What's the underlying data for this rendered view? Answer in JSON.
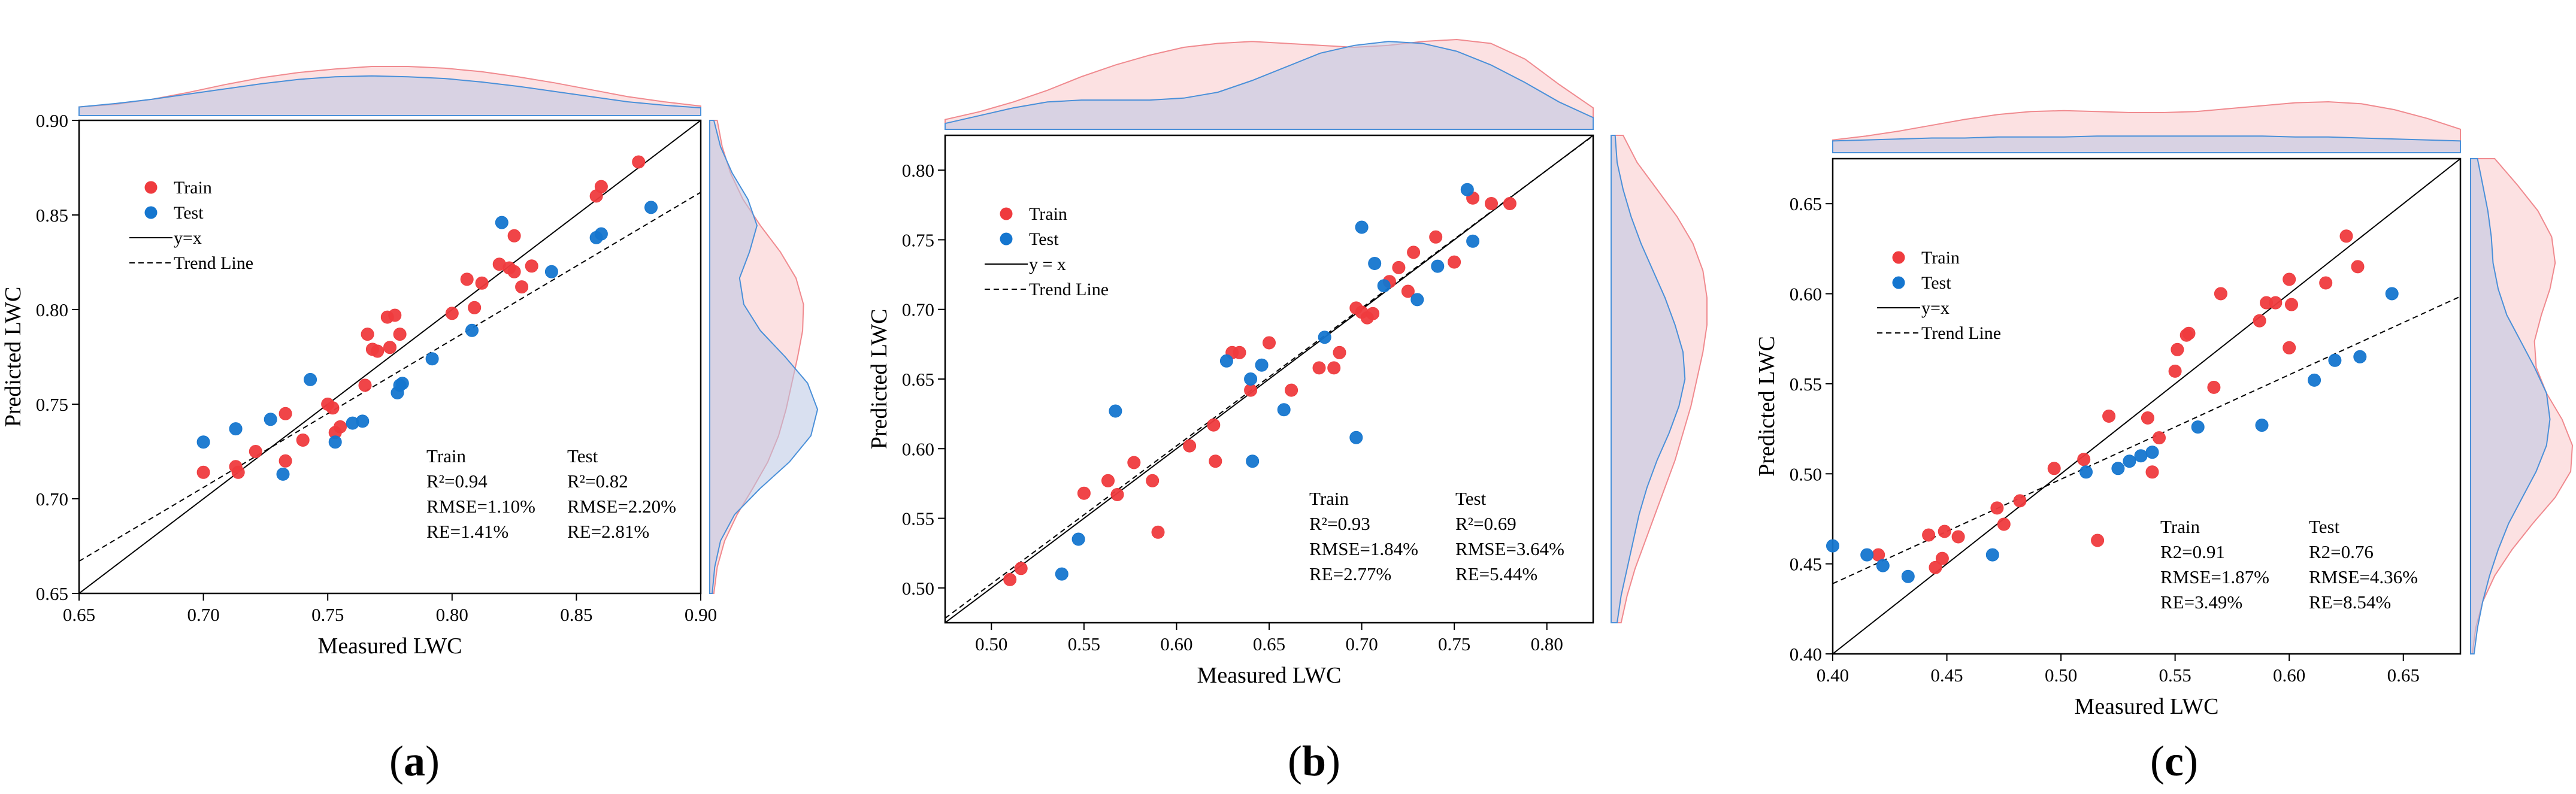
{
  "colors": {
    "train": "#ef3b3e",
    "test": "#1576cf",
    "train_fill": "#f9c9cb",
    "test_fill": "#b9c7e4",
    "test_line": "#4a90d9",
    "train_line": "#f08a8f"
  },
  "chart_data": [
    {
      "type": "scatter",
      "panel": "(a)",
      "panel_letter": "a",
      "xlabel": "Measured LWC",
      "ylabel": "Predicted LWC",
      "xlim": [
        0.65,
        0.9
      ],
      "ylim": [
        0.65,
        0.9
      ],
      "xticks": [
        "0.65",
        "0.70",
        "0.75",
        "0.80",
        "0.85",
        "0.90"
      ],
      "yticks": [
        "0.65",
        "0.70",
        "0.75",
        "0.80",
        "0.85",
        "0.90"
      ],
      "legend": {
        "train": "Train",
        "test": "Test",
        "identity": "y=x",
        "trend": "Trend Line"
      },
      "trend": {
        "slope": 0.78,
        "intercept": 0.16
      },
      "stats_train": [
        "Train",
        "R²=0.94",
        "RMSE=1.10%",
        "RE=1.41%"
      ],
      "stats_test": [
        "Test",
        "R²=0.82",
        "RMSE=2.20%",
        "RE=2.81%"
      ],
      "series": [
        {
          "name": "Train",
          "points": [
            [
              0.7,
              0.714
            ],
            [
              0.713,
              0.717
            ],
            [
              0.714,
              0.714
            ],
            [
              0.721,
              0.725
            ],
            [
              0.733,
              0.745
            ],
            [
              0.74,
              0.731
            ],
            [
              0.733,
              0.72
            ],
            [
              0.75,
              0.75
            ],
            [
              0.752,
              0.748
            ],
            [
              0.753,
              0.735
            ],
            [
              0.755,
              0.738
            ],
            [
              0.765,
              0.76
            ],
            [
              0.766,
              0.787
            ],
            [
              0.768,
              0.779
            ],
            [
              0.77,
              0.778
            ],
            [
              0.775,
              0.78
            ],
            [
              0.774,
              0.796
            ],
            [
              0.777,
              0.797
            ],
            [
              0.779,
              0.787
            ],
            [
              0.8,
              0.798
            ],
            [
              0.806,
              0.816
            ],
            [
              0.809,
              0.801
            ],
            [
              0.812,
              0.814
            ],
            [
              0.819,
              0.824
            ],
            [
              0.823,
              0.822
            ],
            [
              0.825,
              0.82
            ],
            [
              0.825,
              0.839
            ],
            [
              0.828,
              0.812
            ],
            [
              0.832,
              0.823
            ],
            [
              0.858,
              0.86
            ],
            [
              0.86,
              0.865
            ],
            [
              0.875,
              0.878
            ]
          ]
        },
        {
          "name": "Test",
          "points": [
            [
              0.7,
              0.73
            ],
            [
              0.713,
              0.737
            ],
            [
              0.727,
              0.742
            ],
            [
              0.732,
              0.713
            ],
            [
              0.743,
              0.763
            ],
            [
              0.753,
              0.73
            ],
            [
              0.76,
              0.74
            ],
            [
              0.764,
              0.741
            ],
            [
              0.778,
              0.756
            ],
            [
              0.779,
              0.76
            ],
            [
              0.78,
              0.761
            ],
            [
              0.792,
              0.774
            ],
            [
              0.808,
              0.789
            ],
            [
              0.82,
              0.846
            ],
            [
              0.84,
              0.82
            ],
            [
              0.858,
              0.838
            ],
            [
              0.86,
              0.84
            ],
            [
              0.88,
              0.854
            ]
          ]
        }
      ],
      "density_top": {
        "train": [
          1.0,
          1.3,
          1.9,
          2.7,
          3.6,
          4.4,
          5.0,
          5.4,
          5.7,
          5.7,
          5.5,
          5.1,
          4.5,
          3.8,
          3.0,
          2.2,
          1.6,
          1.1
        ],
        "test": [
          1.0,
          1.4,
          1.9,
          2.5,
          3.1,
          3.7,
          4.2,
          4.5,
          4.6,
          4.5,
          4.3,
          3.9,
          3.4,
          2.8,
          2.2,
          1.6,
          1.2,
          0.9
        ]
      },
      "density_right": {
        "train": [
          0.5,
          0.9,
          1.8,
          3.3,
          5.2,
          7.0,
          8.3,
          9.2,
          9.9,
          10.6,
          11.2,
          11.3,
          10.4,
          8.5,
          6.1,
          4.0,
          2.5,
          1.5,
          0.9
        ],
        "test": [
          0.3,
          0.6,
          1.3,
          3.0,
          6.1,
          9.6,
          12.2,
          13.0,
          11.8,
          9.1,
          6.1,
          4.1,
          3.6,
          4.8,
          5.7,
          4.6,
          2.7,
          1.3,
          0.5
        ]
      }
    },
    {
      "type": "scatter",
      "panel": "(b)",
      "panel_letter": "b",
      "xlabel": "Measured LWC",
      "ylabel": "Predicted LWC",
      "xlim": [
        0.475,
        0.825
      ],
      "ylim": [
        0.475,
        0.825
      ],
      "xticks": [
        "0.50",
        "0.55",
        "0.60",
        "0.65",
        "0.70",
        "0.75",
        "0.80"
      ],
      "yticks": [
        "0.50",
        "0.55",
        "0.60",
        "0.65",
        "0.70",
        "0.75",
        "0.80"
      ],
      "legend": {
        "train": "Train",
        "test": "Test",
        "identity": "y = x",
        "trend": "Trend Line"
      },
      "trend": {
        "slope": 0.99,
        "intercept": 0.008
      },
      "stats_train": [
        "Train",
        "R²=0.93",
        "RMSE=1.84%",
        "RE=2.77%"
      ],
      "stats_test": [
        "Test",
        "R²=0.69",
        "RMSE=3.64%",
        "RE=5.44%"
      ],
      "series": [
        {
          "name": "Train",
          "points": [
            [
              0.51,
              0.506
            ],
            [
              0.516,
              0.514
            ],
            [
              0.55,
              0.568
            ],
            [
              0.563,
              0.577
            ],
            [
              0.568,
              0.567
            ],
            [
              0.577,
              0.59
            ],
            [
              0.587,
              0.577
            ],
            [
              0.59,
              0.54
            ],
            [
              0.607,
              0.602
            ],
            [
              0.62,
              0.617
            ],
            [
              0.621,
              0.591
            ],
            [
              0.63,
              0.669
            ],
            [
              0.634,
              0.669
            ],
            [
              0.64,
              0.642
            ],
            [
              0.65,
              0.676
            ],
            [
              0.662,
              0.642
            ],
            [
              0.677,
              0.658
            ],
            [
              0.685,
              0.658
            ],
            [
              0.688,
              0.669
            ],
            [
              0.697,
              0.701
            ],
            [
              0.7,
              0.698
            ],
            [
              0.703,
              0.694
            ],
            [
              0.706,
              0.697
            ],
            [
              0.715,
              0.72
            ],
            [
              0.72,
              0.73
            ],
            [
              0.725,
              0.713
            ],
            [
              0.728,
              0.741
            ],
            [
              0.74,
              0.752
            ],
            [
              0.75,
              0.734
            ],
            [
              0.76,
              0.78
            ],
            [
              0.77,
              0.776
            ],
            [
              0.78,
              0.776
            ]
          ]
        },
        {
          "name": "Test",
          "points": [
            [
              0.538,
              0.51
            ],
            [
              0.547,
              0.535
            ],
            [
              0.567,
              0.627
            ],
            [
              0.627,
              0.663
            ],
            [
              0.64,
              0.65
            ],
            [
              0.641,
              0.591
            ],
            [
              0.646,
              0.66
            ],
            [
              0.658,
              0.628
            ],
            [
              0.68,
              0.68
            ],
            [
              0.697,
              0.608
            ],
            [
              0.7,
              0.759
            ],
            [
              0.707,
              0.733
            ],
            [
              0.712,
              0.717
            ],
            [
              0.73,
              0.707
            ],
            [
              0.741,
              0.731
            ],
            [
              0.757,
              0.786
            ],
            [
              0.76,
              0.749
            ]
          ]
        }
      ],
      "density_top": {
        "train": [
          0.5,
          0.9,
          1.4,
          2.0,
          2.7,
          3.3,
          3.8,
          4.2,
          4.4,
          4.5,
          4.4,
          4.3,
          4.2,
          4.3,
          4.5,
          4.6,
          4.4,
          3.6,
          2.3,
          1.1
        ],
        "test": [
          0.3,
          0.7,
          1.1,
          1.4,
          1.5,
          1.5,
          1.5,
          1.6,
          1.9,
          2.5,
          3.2,
          3.9,
          4.3,
          4.5,
          4.4,
          4.0,
          3.3,
          2.4,
          1.4,
          0.6
        ]
      },
      "density_right": {
        "train": [
          0.5,
          0.8,
          1.2,
          1.7,
          2.2,
          2.7,
          3.2,
          3.6,
          4.0,
          4.3,
          4.6,
          4.8,
          4.8,
          4.6,
          4.1,
          3.3,
          2.3,
          1.3,
          0.6
        ],
        "test": [
          0.3,
          0.5,
          0.8,
          1.1,
          1.4,
          1.8,
          2.3,
          2.9,
          3.4,
          3.7,
          3.6,
          3.2,
          2.7,
          2.1,
          1.5,
          1.0,
          0.6,
          0.3,
          0.2
        ]
      }
    },
    {
      "type": "scatter",
      "panel": "(c)",
      "panel_letter": "c",
      "xlabel": "Measured LWC",
      "ylabel": "Predicted LWC",
      "xlim": [
        0.4,
        0.675
      ],
      "ylim": [
        0.4,
        0.675
      ],
      "xticks": [
        "0.40",
        "0.45",
        "0.50",
        "0.55",
        "0.60",
        "0.65"
      ],
      "yticks": [
        "0.40",
        "0.45",
        "0.50",
        "0.55",
        "0.60",
        "0.65"
      ],
      "legend": {
        "train": "Train",
        "test": "Test",
        "identity": "y=x",
        "trend": "Trend Line"
      },
      "trend": {
        "slope": 0.58,
        "intercept": 0.207
      },
      "stats_train": [
        "Train",
        "R2=0.91",
        "RMSE=1.87%",
        "RE=3.49%"
      ],
      "stats_test": [
        "Test",
        "R2=0.76",
        "RMSE=4.36%",
        "RE=8.54%"
      ],
      "series": [
        {
          "name": "Train",
          "points": [
            [
              0.42,
              0.455
            ],
            [
              0.442,
              0.466
            ],
            [
              0.445,
              0.448
            ],
            [
              0.448,
              0.453
            ],
            [
              0.449,
              0.468
            ],
            [
              0.455,
              0.465
            ],
            [
              0.472,
              0.481
            ],
            [
              0.475,
              0.472
            ],
            [
              0.482,
              0.485
            ],
            [
              0.497,
              0.503
            ],
            [
              0.51,
              0.508
            ],
            [
              0.516,
              0.463
            ],
            [
              0.521,
              0.532
            ],
            [
              0.538,
              0.531
            ],
            [
              0.54,
              0.501
            ],
            [
              0.543,
              0.52
            ],
            [
              0.55,
              0.557
            ],
            [
              0.551,
              0.569
            ],
            [
              0.555,
              0.577
            ],
            [
              0.556,
              0.578
            ],
            [
              0.567,
              0.548
            ],
            [
              0.57,
              0.6
            ],
            [
              0.587,
              0.585
            ],
            [
              0.59,
              0.595
            ],
            [
              0.594,
              0.595
            ],
            [
              0.6,
              0.608
            ],
            [
              0.6,
              0.57
            ],
            [
              0.601,
              0.594
            ],
            [
              0.616,
              0.606
            ],
            [
              0.625,
              0.632
            ],
            [
              0.63,
              0.615
            ]
          ]
        },
        {
          "name": "Test",
          "points": [
            [
              0.4,
              0.46
            ],
            [
              0.415,
              0.455
            ],
            [
              0.422,
              0.449
            ],
            [
              0.433,
              0.443
            ],
            [
              0.47,
              0.455
            ],
            [
              0.511,
              0.501
            ],
            [
              0.525,
              0.503
            ],
            [
              0.53,
              0.507
            ],
            [
              0.535,
              0.51
            ],
            [
              0.54,
              0.512
            ],
            [
              0.56,
              0.526
            ],
            [
              0.588,
              0.527
            ],
            [
              0.611,
              0.552
            ],
            [
              0.62,
              0.563
            ],
            [
              0.631,
              0.565
            ],
            [
              0.645,
              0.6
            ]
          ]
        }
      ],
      "density_top": {
        "train": [
          1.3,
          1.7,
          2.2,
          2.8,
          3.4,
          3.9,
          4.2,
          4.3,
          4.2,
          4.1,
          4.1,
          4.2,
          4.5,
          4.8,
          5.1,
          5.2,
          5.0,
          4.4,
          3.5,
          2.4
        ],
        "test": [
          1.2,
          1.3,
          1.4,
          1.5,
          1.5,
          1.6,
          1.6,
          1.6,
          1.7,
          1.7,
          1.7,
          1.7,
          1.7,
          1.7,
          1.6,
          1.6,
          1.5,
          1.4,
          1.3,
          1.2
        ]
      },
      "density_right": {
        "train": [
          0.1,
          0.3,
          0.7,
          1.4,
          2.4,
          3.6,
          4.9,
          5.8,
          5.9,
          5.3,
          4.4,
          3.8,
          3.7,
          4.1,
          4.6,
          4.9,
          4.7,
          3.9,
          2.7,
          1.4
        ],
        "test": [
          0.2,
          0.4,
          0.7,
          1.1,
          1.6,
          2.2,
          3.0,
          3.8,
          4.4,
          4.6,
          4.4,
          3.7,
          2.9,
          2.1,
          1.6,
          1.3,
          1.2,
          1.0,
          0.7,
          0.4
        ]
      }
    }
  ]
}
